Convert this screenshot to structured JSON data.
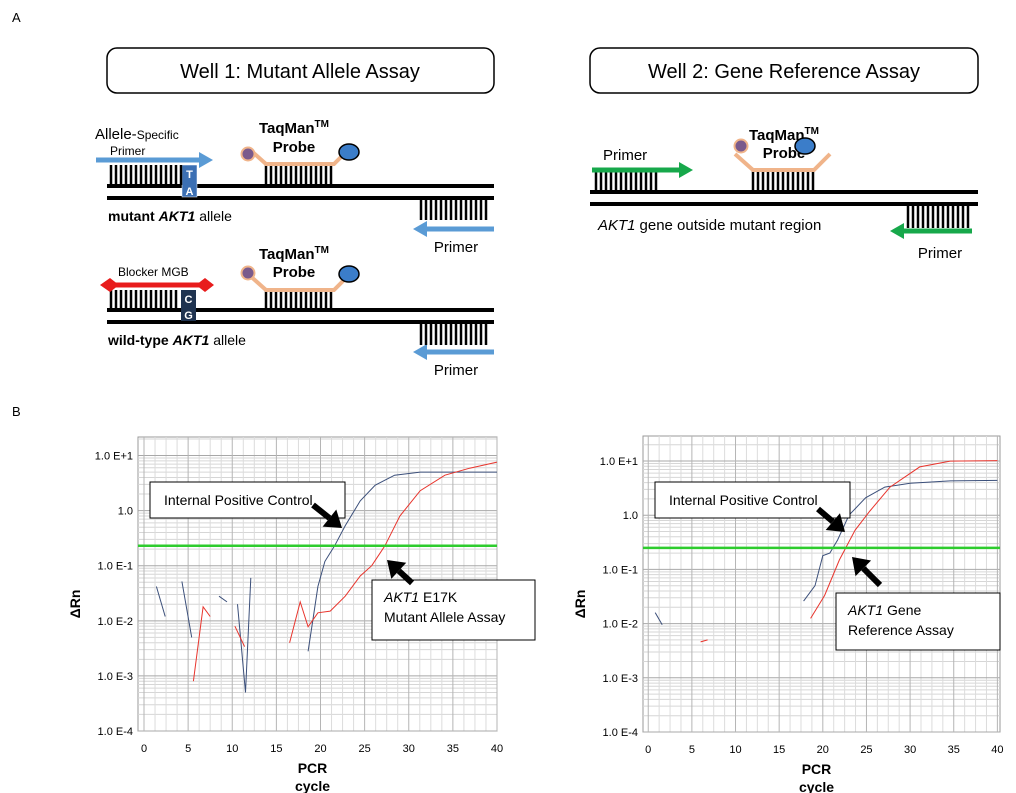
{
  "panel_a": {
    "label": "A",
    "well1": {
      "title": "Well 1: Mutant Allele Assay",
      "mutant": {
        "primer_top": "Allele-",
        "primer_top_small": "Specific",
        "primer": "Primer",
        "base_top": "T",
        "base_bottom": "A",
        "probe_name": "TaqMan",
        "probe_tm": "TM",
        "probe": "Probe",
        "allele_bold": "mutant",
        "allele_italic": "AKT1",
        "allele_rest": "allele",
        "reverse_primer": "Primer"
      },
      "wild_type": {
        "blocker": "Blocker MGB",
        "base_top": "C",
        "base_bottom": "G",
        "probe_name": "TaqMan",
        "probe_tm": "TM",
        "probe": "Probe",
        "allele_bold": "wild-type",
        "allele_italic": "AKT1",
        "allele_rest": "allele",
        "reverse_primer": "Primer"
      }
    },
    "well2": {
      "title": "Well 2: Gene Reference Assay",
      "primer": "Primer",
      "probe_name": "TaqMan",
      "probe_tm": "TM",
      "probe": "Probe",
      "region_italic": "AKT1",
      "region_rest": "gene outside mutant region",
      "reverse_primer": "Primer"
    }
  },
  "panel_b": {
    "label": "B"
  },
  "chart_data": [
    {
      "type": "line",
      "ylabel": "ΔRn",
      "xlabel": [
        "PCR",
        "cycle"
      ],
      "log_y": true,
      "grid": true,
      "minor_grid": true,
      "xlim": [
        -0.68,
        40
      ],
      "xticks": [
        0,
        5,
        10,
        15,
        20,
        25,
        30,
        35,
        40
      ],
      "ylim": [
        0.0001,
        21.7
      ],
      "yticks": [
        {
          "value": 0.0001,
          "label": "1.0 E-4"
        },
        {
          "value": 0.001,
          "label": "1.0 E-3"
        },
        {
          "value": 0.01,
          "label": "1.0 E-2"
        },
        {
          "value": 0.1,
          "label": "1.0 E-1"
        },
        {
          "value": 1,
          "label": "1.0"
        },
        {
          "value": 10,
          "label": "1.0 E+1"
        }
      ],
      "threshold": 0.23,
      "threshold_color": "#2ecc2e",
      "series": [
        {
          "color": "#3b4f7a",
          "x": [
            1.4,
            2.4,
            null,
            4.3,
            5.4,
            null,
            8.5,
            9.4,
            null,
            10.6,
            11.5,
            12.1,
            null,
            18.6,
            19.2,
            19.7,
            20.5,
            21.6,
            22.8,
            24.5,
            26.2,
            28.4,
            31.3,
            34.7,
            40
          ],
          "values": [
            0.042,
            0.012,
            null,
            0.052,
            0.005,
            null,
            0.028,
            0.022,
            null,
            0.02,
            0.0005,
            0.06,
            null,
            0.0028,
            0.012,
            0.042,
            0.12,
            0.23,
            0.53,
            1.5,
            2.9,
            4.4,
            5.0,
            5.0,
            5.0
          ]
        },
        {
          "color": "#e8342c",
          "x": [
            5.6,
            6.7,
            7.5,
            null,
            10.3,
            11.4,
            null,
            16.5,
            17.7,
            18.6,
            19.7,
            21.1,
            22.8,
            24.5,
            25.8,
            27.3,
            29.0,
            31.3,
            34.1,
            36.9,
            40
          ],
          "values": [
            0.0008,
            0.018,
            0.012,
            null,
            0.008,
            0.0034,
            null,
            0.004,
            0.022,
            0.0078,
            0.014,
            0.015,
            0.028,
            0.065,
            0.1,
            0.23,
            0.8,
            2.3,
            4.4,
            5.9,
            7.6
          ]
        }
      ],
      "annotations": [
        {
          "lines": [
            [
              {
                "text": "Internal Positive Control"
              }
            ]
          ]
        },
        {
          "lines": [
            [
              {
                "text": "AKT1",
                "italic": true
              },
              {
                "text": "E17K"
              }
            ],
            [
              {
                "text": "Mutant Allele Assay"
              }
            ]
          ]
        }
      ]
    },
    {
      "type": "line",
      "ylabel": "ΔRn",
      "xlabel": [
        "PCR",
        "cycle"
      ],
      "log_y": true,
      "grid": true,
      "minor_grid": true,
      "xlim": [
        -0.6,
        40.3
      ],
      "xticks": [
        0,
        5,
        10,
        15,
        20,
        25,
        30,
        35,
        40
      ],
      "ylim": [
        0.0001,
        29
      ],
      "yticks": [
        {
          "value": 0.0001,
          "label": "1.0 E-4"
        },
        {
          "value": 0.001,
          "label": "1.0 E-3"
        },
        {
          "value": 0.01,
          "label": "1.0 E-2"
        },
        {
          "value": 0.1,
          "label": "1.0 E-1"
        },
        {
          "value": 1,
          "label": "1.0"
        },
        {
          "value": 10,
          "label": "1.0 E+1"
        }
      ],
      "threshold": 0.25,
      "threshold_color": "#2ecc2e",
      "series": [
        {
          "color": "#3b4f7a",
          "x": [
            0.8,
            1.6,
            null,
            17.8,
            19.1,
            20,
            20.8,
            21.7,
            23,
            24.9,
            27.1,
            30,
            34.6,
            40
          ],
          "values": [
            0.016,
            0.0095,
            null,
            0.026,
            0.05,
            0.18,
            0.2,
            0.35,
            1.0,
            2.1,
            3.3,
            3.9,
            4.3,
            4.4
          ]
        },
        {
          "color": "#e8342c",
          "x": [
            6,
            6.8,
            null,
            18.6,
            20.2,
            21.9,
            23.7,
            25.4,
            27.7,
            31.1,
            34.6,
            40
          ],
          "values": [
            0.0046,
            0.005,
            null,
            0.0125,
            0.033,
            0.15,
            0.53,
            1.2,
            3.3,
            7.8,
            10,
            10.2
          ]
        }
      ],
      "annotations": [
        {
          "lines": [
            [
              {
                "text": "Internal Positive Control"
              }
            ]
          ]
        },
        {
          "lines": [
            [
              {
                "text": "AKT1",
                "italic": true
              },
              {
                "text": "Gene"
              }
            ],
            [
              {
                "text": "Reference Assay"
              }
            ]
          ]
        }
      ]
    }
  ]
}
